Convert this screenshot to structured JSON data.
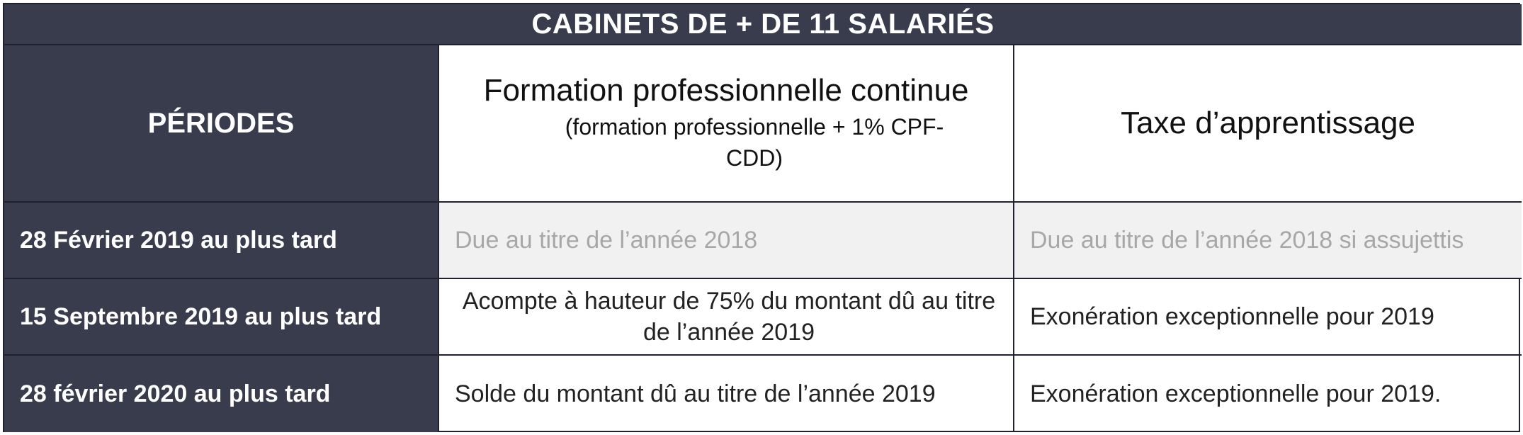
{
  "title": "CABINETS DE + DE 11 SALARIÉS",
  "headers": {
    "periodes": "PÉRIODES",
    "formation_main": "Formation professionnelle continue",
    "formation_sub": "(formation professionnelle + 1% CPF-CDD)",
    "taxe": "Taxe d’apprentissage"
  },
  "rows": [
    {
      "period": "28 Février 2019 au plus tard",
      "formation": "Due au titre de l’année 2018",
      "taxe": "Due au titre de l’année 2018 si assujettis"
    },
    {
      "period": "15 Septembre 2019 au plus tard",
      "formation": "Acompte à hauteur de 75% du montant dû au titre de l’année 2019",
      "taxe": "Exonération exceptionnelle pour 2019"
    },
    {
      "period": "28 février 2020 au plus tard",
      "formation": "Solde du montant dû au titre de l’année 2019",
      "taxe": "Exonération exceptionnelle pour 2019."
    }
  ],
  "colors": {
    "header_dark": "#393c4c",
    "border": "#1f2130",
    "grey_row": "#f1f1f1",
    "grey_text": "#a7a7a7"
  }
}
